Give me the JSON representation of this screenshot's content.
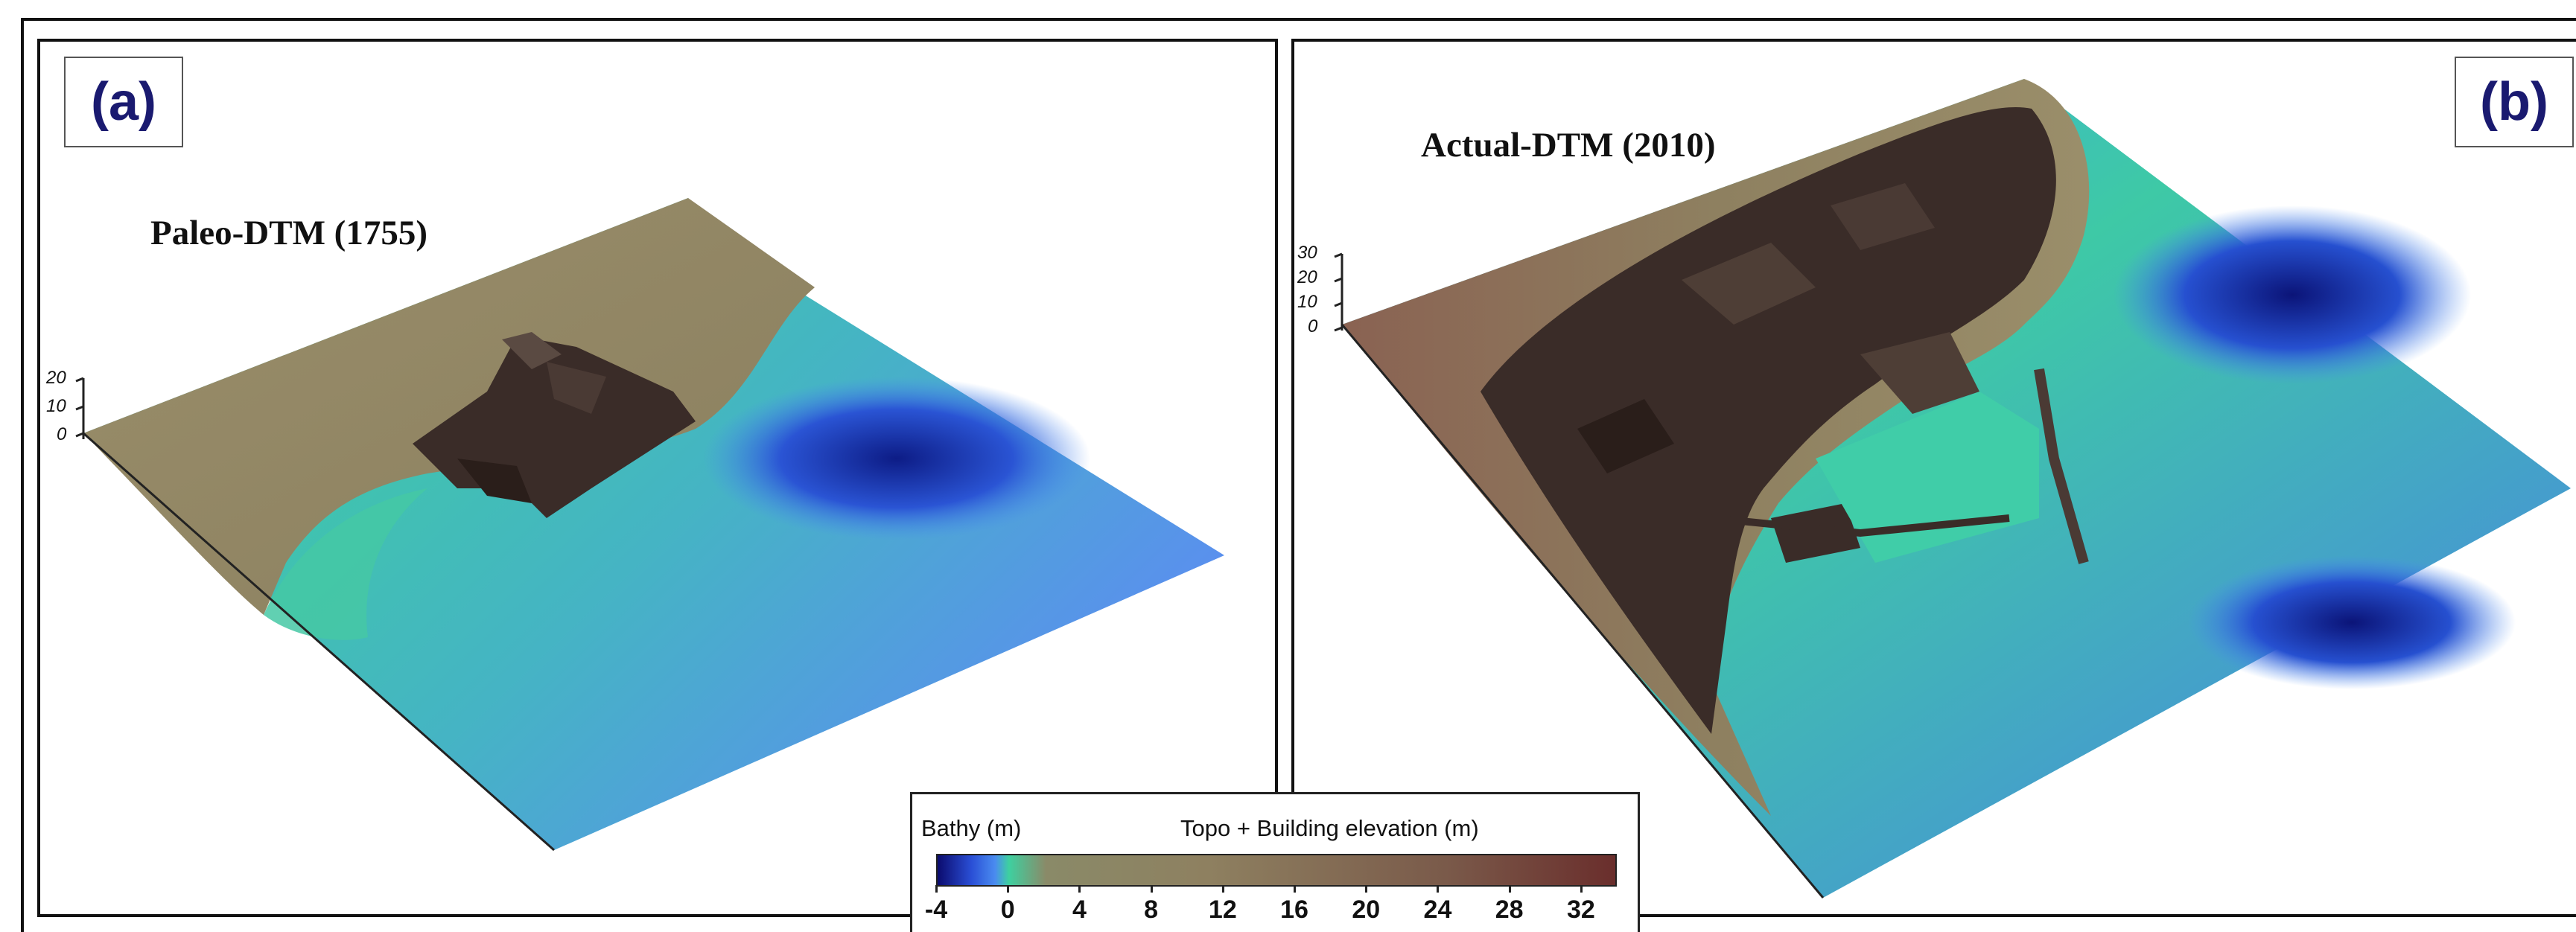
{
  "panels": [
    {
      "label": "(a)",
      "title": "Paleo-DTM (1755)",
      "z_ticks": [
        "20",
        "10",
        "0"
      ]
    },
    {
      "label": "(b)",
      "title": "Actual-DTM (2010)",
      "z_ticks": [
        "30",
        "20",
        "10",
        "0"
      ]
    }
  ],
  "legend": {
    "bathy_title": "Bathy (m)",
    "topo_title": "Topo + Building elevation (m)",
    "ticks": [
      "-4",
      "0",
      "4",
      "8",
      "12",
      "16",
      "20",
      "24",
      "28",
      "32"
    ],
    "tick_values": [
      -4,
      0,
      4,
      8,
      12,
      16,
      20,
      24,
      28,
      32
    ],
    "range": [
      -4,
      34
    ]
  },
  "colors": {
    "deep_water": "#0b0b6e",
    "mid_water": "#4a8cf0",
    "shallow_water": "#3ed0a0",
    "land": "#8e8060",
    "high_elevation": "#6a2e2c",
    "buildings": "#3a2c28",
    "label_text": "#1a1a70"
  }
}
